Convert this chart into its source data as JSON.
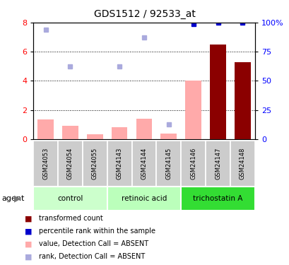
{
  "title": "GDS1512 / 92533_at",
  "samples": [
    "GSM24053",
    "GSM24054",
    "GSM24055",
    "GSM24143",
    "GSM24144",
    "GSM24145",
    "GSM24146",
    "GSM24147",
    "GSM24148"
  ],
  "groups": [
    {
      "label": "control",
      "indices": [
        0,
        1,
        2
      ],
      "color": "#ccffcc"
    },
    {
      "label": "retinoic acid",
      "indices": [
        3,
        4,
        5
      ],
      "color": "#bbffbb"
    },
    {
      "label": "trichostatin A",
      "indices": [
        6,
        7,
        8
      ],
      "color": "#33dd33"
    }
  ],
  "bar_values": [
    1.35,
    0.9,
    0.35,
    0.8,
    1.4,
    0.4,
    4.0,
    6.5,
    5.3
  ],
  "bar_absent": [
    true,
    true,
    true,
    true,
    true,
    true,
    true,
    false,
    false
  ],
  "rank_values_absent": [
    7.5,
    5.0,
    null,
    5.0,
    7.0,
    1.0,
    null,
    null,
    null
  ],
  "dot_rank_present": [
    null,
    null,
    null,
    null,
    null,
    null,
    7.9,
    8.0,
    8.0
  ],
  "dot_rank_present_color": "#0000cc",
  "bar_color_present": "#8b0000",
  "bar_color_absent": "#ffaaaa",
  "dot_color_absent": "#aaaadd",
  "ylim_left": [
    0,
    8
  ],
  "yticks_left": [
    0,
    2,
    4,
    6,
    8
  ],
  "ytick_labels_right": [
    "0",
    "25",
    "50",
    "75",
    "100%"
  ],
  "gridlines": [
    2,
    4,
    6
  ],
  "sample_box_color": "#cccccc",
  "legend_items": [
    {
      "color": "#8b0000",
      "label": "transformed count"
    },
    {
      "color": "#0000cc",
      "label": "percentile rank within the sample"
    },
    {
      "color": "#ffaaaa",
      "label": "value, Detection Call = ABSENT"
    },
    {
      "color": "#aaaadd",
      "label": "rank, Detection Call = ABSENT"
    }
  ]
}
